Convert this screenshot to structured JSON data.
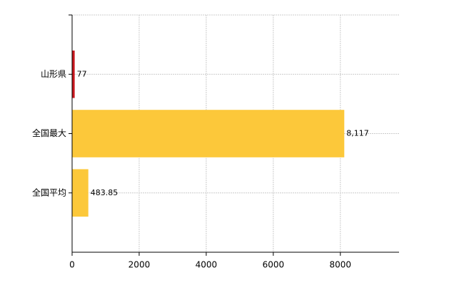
{
  "chart_data": {
    "type": "barh",
    "categories": [
      "山形県",
      "全国最大",
      "全国平均"
    ],
    "values": [
      77,
      8117,
      483.85
    ],
    "value_labels": [
      "77",
      "8,117",
      "483.85"
    ],
    "colors": [
      "#c8161d",
      "#fcc83a",
      "#fcc83a"
    ],
    "xlim": [
      0,
      9750
    ],
    "xticks": [
      0,
      2000,
      4000,
      6000,
      8000
    ],
    "grid": true
  }
}
